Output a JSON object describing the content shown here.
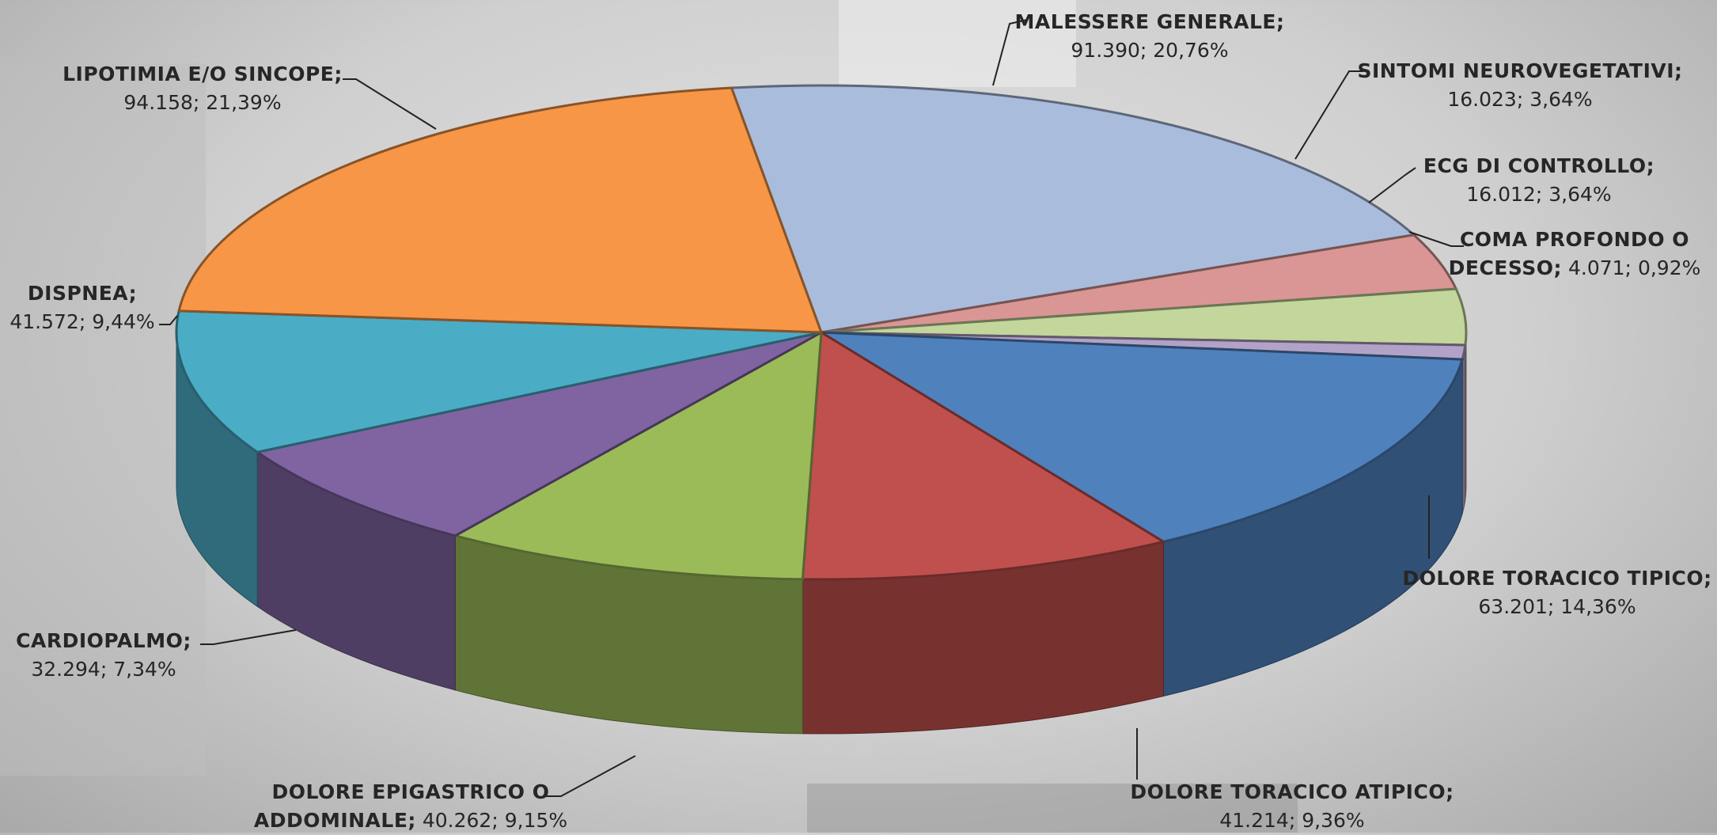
{
  "chart_data": {
    "type": "pie",
    "categories": [
      "MALESSERE GENERALE;",
      "SINTOMI NEUROVEGETATIVI;",
      "ECG DI CONTROLLO;",
      "COMA PROFONDO O DECESSO;",
      "DOLORE TORACICO TIPICO;",
      "DOLORE TORACICO ATIPICO;",
      "DOLORE EPIGASTRICO O ADDOMINALE;",
      "CARDIOPALMO;",
      "DISPNEA;",
      "LIPOTIMIA E/O SINCOPE;"
    ],
    "values": [
      91390,
      16023,
      16012,
      4071,
      63201,
      41214,
      40262,
      32294,
      41572,
      94158
    ],
    "value_labels": [
      "91.390;",
      "16.023;",
      "16.012;",
      "4.071;",
      "63.201;",
      "41.214;",
      "40.262;",
      "32.294;",
      "41.572;",
      "94.158;"
    ],
    "percents": [
      20.76,
      3.64,
      3.64,
      0.92,
      14.36,
      9.36,
      9.15,
      7.34,
      9.44,
      21.39
    ],
    "percent_labels": [
      "20,76%",
      "3,64%",
      "3,64%",
      "0,92%",
      "14,36%",
      "9,36%",
      "9,15%",
      "7,34%",
      "9,44%",
      "21,39%"
    ],
    "colors": [
      "#a9bcdc",
      "#d99694",
      "#c3d69b",
      "#b3a2c7",
      "#4f81bd",
      "#c0504d",
      "#9bbb59",
      "#8064a2",
      "#4bacc6",
      "#f79646"
    ]
  }
}
